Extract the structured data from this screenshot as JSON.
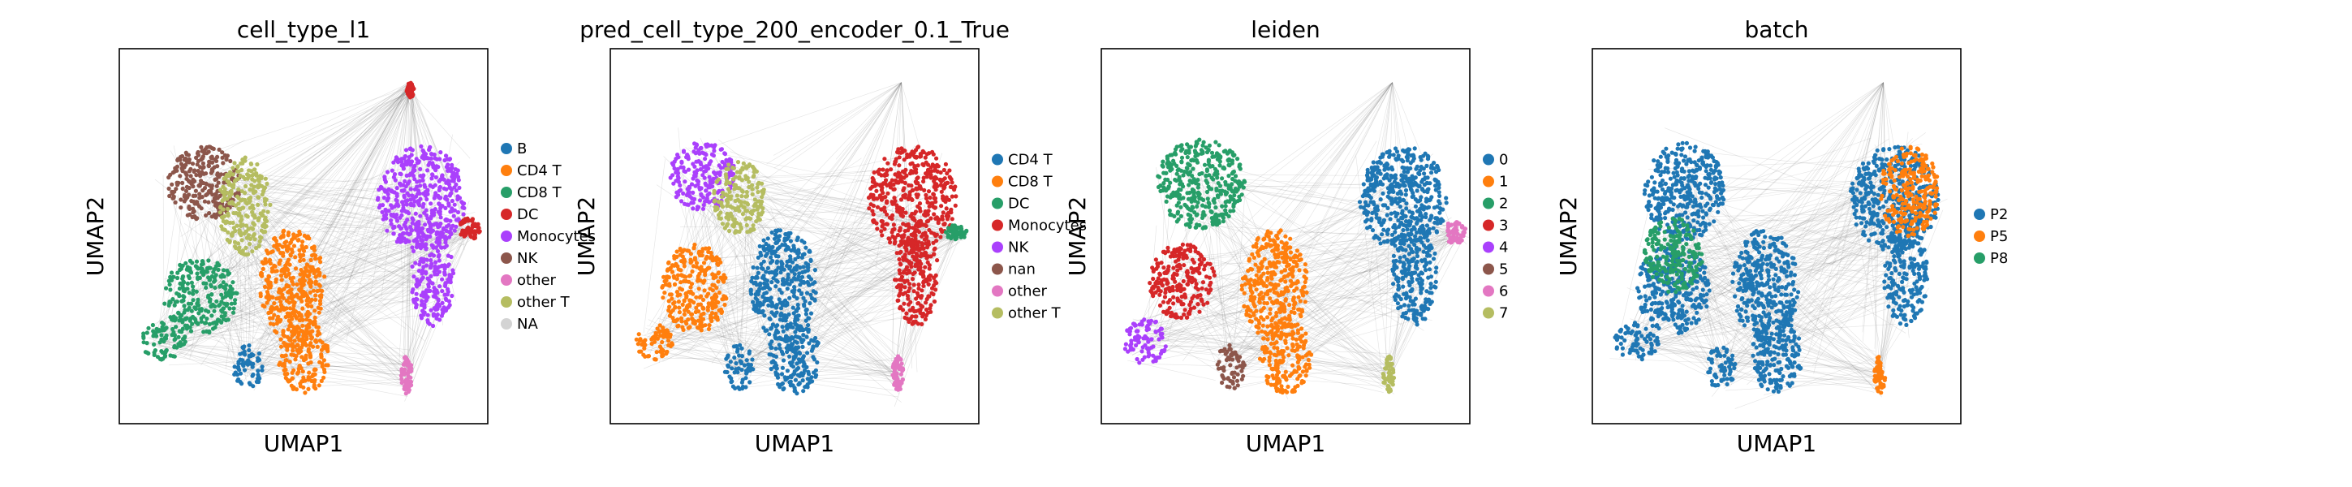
{
  "chart_data": [
    {
      "type": "scatter",
      "title": "cell_type_l1",
      "xlabel": "UMAP1",
      "ylabel": "UMAP2",
      "legend_position": "right",
      "grid": false,
      "legend": [
        {
          "label": "B",
          "color": "#1f77b4"
        },
        {
          "label": "CD4 T",
          "color": "#ff7f0e"
        },
        {
          "label": "CD8 T",
          "color": "#279e68"
        },
        {
          "label": "DC",
          "color": "#d62728"
        },
        {
          "label": "Monocytes",
          "color": "#aa40fc"
        },
        {
          "label": "NK",
          "color": "#8c564b"
        },
        {
          "label": "other",
          "color": "#e377c2"
        },
        {
          "label": "other T",
          "color": "#b5bd61"
        },
        {
          "label": "NA",
          "color": "#d3d3d3"
        }
      ],
      "clusters": [
        {
          "label": "NK",
          "color": "#8c564b",
          "x": 0.23,
          "y": 0.64,
          "rx": 0.1,
          "ry": 0.1
        },
        {
          "label": "other T",
          "color": "#b5bd61",
          "x": 0.34,
          "y": 0.58,
          "rx": 0.07,
          "ry": 0.13
        },
        {
          "label": "CD8 T",
          "color": "#279e68",
          "x": 0.22,
          "y": 0.34,
          "rx": 0.1,
          "ry": 0.1
        },
        {
          "label": "CD8 T",
          "color": "#279e68",
          "x": 0.12,
          "y": 0.22,
          "rx": 0.06,
          "ry": 0.05
        },
        {
          "label": "CD4 T",
          "color": "#ff7f0e",
          "x": 0.47,
          "y": 0.37,
          "rx": 0.09,
          "ry": 0.15
        },
        {
          "label": "CD4 T",
          "color": "#ff7f0e",
          "x": 0.5,
          "y": 0.18,
          "rx": 0.07,
          "ry": 0.1
        },
        {
          "label": "B",
          "color": "#1f77b4",
          "x": 0.35,
          "y": 0.15,
          "rx": 0.04,
          "ry": 0.06
        },
        {
          "label": "Monocytes",
          "color": "#aa40fc",
          "x": 0.82,
          "y": 0.6,
          "rx": 0.12,
          "ry": 0.14
        },
        {
          "label": "Monocytes",
          "color": "#aa40fc",
          "x": 0.85,
          "y": 0.4,
          "rx": 0.06,
          "ry": 0.14
        },
        {
          "label": "DC",
          "color": "#d62728",
          "x": 0.95,
          "y": 0.52,
          "rx": 0.03,
          "ry": 0.03
        },
        {
          "label": "other",
          "color": "#e377c2",
          "x": 0.78,
          "y": 0.13,
          "rx": 0.015,
          "ry": 0.05
        },
        {
          "label": "DC",
          "color": "#d62728",
          "x": 0.79,
          "y": 0.89,
          "rx": 0.01,
          "ry": 0.02
        }
      ]
    },
    {
      "type": "scatter",
      "title": "pred_cell_type_200_encoder_0.1_True",
      "xlabel": "UMAP1",
      "ylabel": "UMAP2",
      "legend_position": "right",
      "grid": false,
      "legend": [
        {
          "label": "CD4 T",
          "color": "#1f77b4"
        },
        {
          "label": "CD8 T",
          "color": "#ff7f0e"
        },
        {
          "label": "DC",
          "color": "#279e68"
        },
        {
          "label": "Monocytes",
          "color": "#d62728"
        },
        {
          "label": "NK",
          "color": "#aa40fc"
        },
        {
          "label": "nan",
          "color": "#8c564b"
        },
        {
          "label": "other",
          "color": "#e377c2"
        },
        {
          "label": "other T",
          "color": "#b5bd61"
        }
      ],
      "clusters": [
        {
          "label": "NK",
          "color": "#aa40fc",
          "x": 0.25,
          "y": 0.66,
          "rx": 0.09,
          "ry": 0.09
        },
        {
          "label": "other T",
          "color": "#b5bd61",
          "x": 0.35,
          "y": 0.6,
          "rx": 0.07,
          "ry": 0.1
        },
        {
          "label": "CD8 T",
          "color": "#ff7f0e",
          "x": 0.23,
          "y": 0.36,
          "rx": 0.09,
          "ry": 0.12
        },
        {
          "label": "CD8 T",
          "color": "#ff7f0e",
          "x": 0.12,
          "y": 0.22,
          "rx": 0.05,
          "ry": 0.05
        },
        {
          "label": "CD4 T",
          "color": "#1f77b4",
          "x": 0.47,
          "y": 0.37,
          "rx": 0.09,
          "ry": 0.15
        },
        {
          "label": "CD4 T",
          "color": "#1f77b4",
          "x": 0.5,
          "y": 0.18,
          "rx": 0.07,
          "ry": 0.1
        },
        {
          "label": "CD4 T",
          "color": "#1f77b4",
          "x": 0.35,
          "y": 0.15,
          "rx": 0.04,
          "ry": 0.06
        },
        {
          "label": "Monocytes",
          "color": "#d62728",
          "x": 0.82,
          "y": 0.6,
          "rx": 0.12,
          "ry": 0.14
        },
        {
          "label": "Monocytes",
          "color": "#d62728",
          "x": 0.83,
          "y": 0.4,
          "rx": 0.06,
          "ry": 0.14
        },
        {
          "label": "DC",
          "color": "#279e68",
          "x": 0.94,
          "y": 0.51,
          "rx": 0.03,
          "ry": 0.02
        },
        {
          "label": "other",
          "color": "#e377c2",
          "x": 0.78,
          "y": 0.13,
          "rx": 0.015,
          "ry": 0.05
        }
      ]
    },
    {
      "type": "scatter",
      "title": "leiden",
      "xlabel": "UMAP1",
      "ylabel": "UMAP2",
      "legend_position": "right",
      "grid": false,
      "legend": [
        {
          "label": "0",
          "color": "#1f77b4"
        },
        {
          "label": "1",
          "color": "#ff7f0e"
        },
        {
          "label": "2",
          "color": "#279e68"
        },
        {
          "label": "3",
          "color": "#d62728"
        },
        {
          "label": "4",
          "color": "#aa40fc"
        },
        {
          "label": "5",
          "color": "#8c564b"
        },
        {
          "label": "6",
          "color": "#e377c2"
        },
        {
          "label": "7",
          "color": "#b5bd61"
        }
      ],
      "clusters": [
        {
          "label": "2",
          "color": "#279e68",
          "x": 0.27,
          "y": 0.64,
          "rx": 0.12,
          "ry": 0.12
        },
        {
          "label": "3",
          "color": "#d62728",
          "x": 0.22,
          "y": 0.38,
          "rx": 0.09,
          "ry": 0.1
        },
        {
          "label": "4",
          "color": "#aa40fc",
          "x": 0.12,
          "y": 0.22,
          "rx": 0.06,
          "ry": 0.06
        },
        {
          "label": "1",
          "color": "#ff7f0e",
          "x": 0.47,
          "y": 0.37,
          "rx": 0.09,
          "ry": 0.15
        },
        {
          "label": "1",
          "color": "#ff7f0e",
          "x": 0.5,
          "y": 0.18,
          "rx": 0.07,
          "ry": 0.1
        },
        {
          "label": "5",
          "color": "#8c564b",
          "x": 0.35,
          "y": 0.15,
          "rx": 0.04,
          "ry": 0.06
        },
        {
          "label": "0",
          "color": "#1f77b4",
          "x": 0.82,
          "y": 0.6,
          "rx": 0.12,
          "ry": 0.14
        },
        {
          "label": "0",
          "color": "#1f77b4",
          "x": 0.85,
          "y": 0.4,
          "rx": 0.06,
          "ry": 0.14
        },
        {
          "label": "6",
          "color": "#e377c2",
          "x": 0.96,
          "y": 0.51,
          "rx": 0.03,
          "ry": 0.03
        },
        {
          "label": "7",
          "color": "#b5bd61",
          "x": 0.78,
          "y": 0.13,
          "rx": 0.015,
          "ry": 0.05
        }
      ]
    },
    {
      "type": "scatter",
      "title": "batch",
      "xlabel": "UMAP1",
      "ylabel": "UMAP2",
      "legend_position": "right",
      "grid": false,
      "legend": [
        {
          "label": "P2",
          "color": "#1f77b4"
        },
        {
          "label": "P5",
          "color": "#ff7f0e"
        },
        {
          "label": "P8",
          "color": "#279e68"
        }
      ],
      "clusters": [
        {
          "label": "P2",
          "color": "#1f77b4",
          "x": 0.25,
          "y": 0.62,
          "rx": 0.11,
          "ry": 0.13
        },
        {
          "label": "P2",
          "color": "#1f77b4",
          "x": 0.22,
          "y": 0.36,
          "rx": 0.1,
          "ry": 0.12
        },
        {
          "label": "P2",
          "color": "#1f77b4",
          "x": 0.12,
          "y": 0.22,
          "rx": 0.06,
          "ry": 0.05
        },
        {
          "label": "P2",
          "color": "#1f77b4",
          "x": 0.47,
          "y": 0.37,
          "rx": 0.09,
          "ry": 0.15
        },
        {
          "label": "P2",
          "color": "#1f77b4",
          "x": 0.5,
          "y": 0.18,
          "rx": 0.07,
          "ry": 0.1
        },
        {
          "label": "P2",
          "color": "#1f77b4",
          "x": 0.35,
          "y": 0.15,
          "rx": 0.04,
          "ry": 0.06
        },
        {
          "label": "P2",
          "color": "#1f77b4",
          "x": 0.82,
          "y": 0.6,
          "rx": 0.12,
          "ry": 0.14
        },
        {
          "label": "P2",
          "color": "#1f77b4",
          "x": 0.85,
          "y": 0.4,
          "rx": 0.06,
          "ry": 0.14
        },
        {
          "label": "P5",
          "color": "#ff7f0e",
          "x": 0.86,
          "y": 0.62,
          "rx": 0.08,
          "ry": 0.12
        },
        {
          "label": "P5",
          "color": "#ff7f0e",
          "x": 0.78,
          "y": 0.13,
          "rx": 0.015,
          "ry": 0.05
        },
        {
          "label": "P8",
          "color": "#279e68",
          "x": 0.22,
          "y": 0.45,
          "rx": 0.08,
          "ry": 0.1
        }
      ]
    }
  ]
}
